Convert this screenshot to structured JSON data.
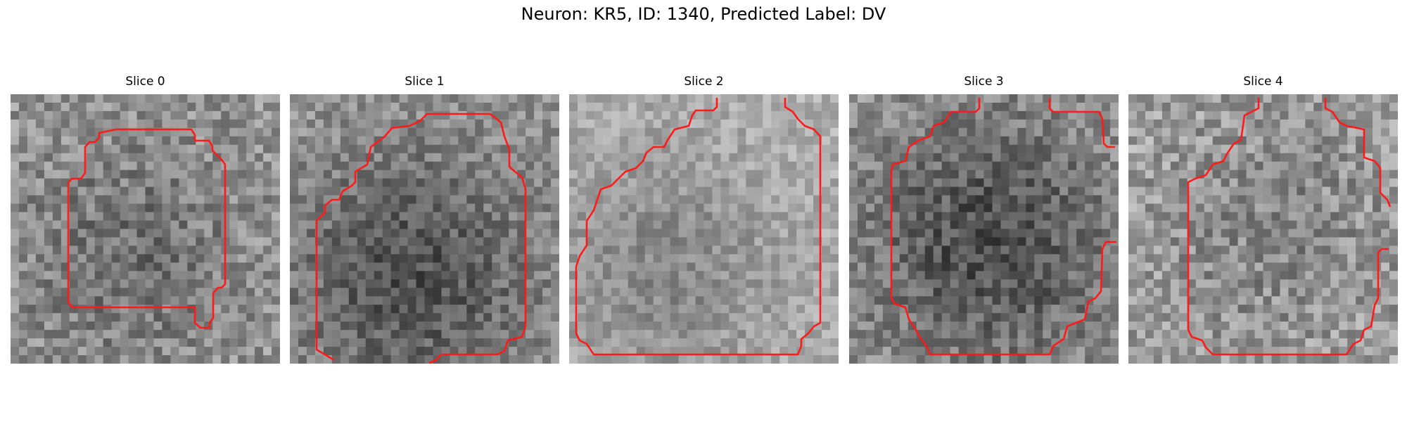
{
  "figure": {
    "title": "Neuron: KR5, ID: 1340, Predicted Label: DV"
  },
  "panels": [
    {
      "title": "Slice 0"
    },
    {
      "title": "Slice 1"
    },
    {
      "title": "Slice 2"
    },
    {
      "title": "Slice 3"
    },
    {
      "title": "Slice 4"
    }
  ],
  "colors": {
    "contour": "#ff1a1a",
    "background": "#ffffff"
  }
}
